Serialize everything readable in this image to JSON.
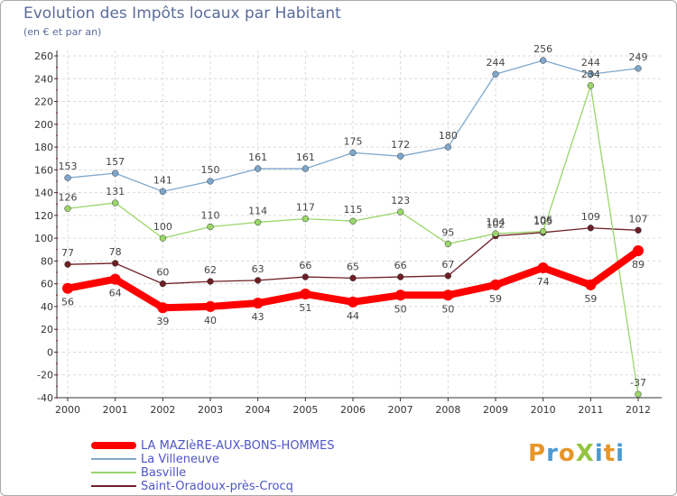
{
  "title": "Evolution des Impôts locaux par Habitant",
  "subtitle": "(en € et par an)",
  "brand": {
    "text": "ProXiti",
    "letter_colors": [
      "#e7962a",
      "#4a9ad4",
      "#e7962a",
      "#93c43d",
      "#4a9ad4",
      "#e7962a",
      "#4a9ad4"
    ]
  },
  "chart_data": {
    "type": "line",
    "x": [
      "2000",
      "2001",
      "2002",
      "2003",
      "2004",
      "2005",
      "2006",
      "2007",
      "2008",
      "2009",
      "2010",
      "2011",
      "2012"
    ],
    "ylim": [
      -40,
      260
    ],
    "yticks": [
      -40,
      -20,
      0,
      20,
      40,
      60,
      80,
      100,
      120,
      140,
      160,
      180,
      200,
      220,
      240,
      260
    ],
    "grid": true,
    "legend_position": "bottom-left",
    "series": [
      {
        "name": "Saint-Oradoux-près-Crocq",
        "color": "#6e1f26",
        "values": [
          77,
          78,
          60,
          62,
          63,
          66,
          65,
          66,
          67,
          102,
          105,
          109,
          107
        ],
        "emphasis": false
      },
      {
        "name": "Basville",
        "color": "#9bd66b",
        "values": [
          126,
          131,
          100,
          110,
          114,
          117,
          115,
          123,
          95,
          104,
          106,
          234,
          -37
        ],
        "emphasis": false
      },
      {
        "name": "La Villeneuve",
        "color": "#7fa7cc",
        "values": [
          153,
          157,
          141,
          150,
          161,
          161,
          175,
          172,
          180,
          244,
          256,
          244,
          249
        ],
        "emphasis": false
      },
      {
        "name": "LA MAZIèRE-AUX-BONS-HOMMES",
        "color": "#ff0000",
        "values": [
          56,
          64,
          39,
          40,
          43,
          51,
          44,
          50,
          50,
          59,
          74,
          59,
          89
        ],
        "emphasis": true
      }
    ]
  },
  "legend": [
    {
      "label": "LA MAZIèRE-AUX-BONS-HOMMES",
      "color": "#ff0000",
      "thickness": 8
    },
    {
      "label": "La Villeneuve",
      "color": "#7fa7cc",
      "thickness": 2
    },
    {
      "label": "Basville",
      "color": "#9bd66b",
      "thickness": 2
    },
    {
      "label": "Saint-Oradoux-près-Crocq",
      "color": "#6e1f26",
      "thickness": 2
    }
  ]
}
